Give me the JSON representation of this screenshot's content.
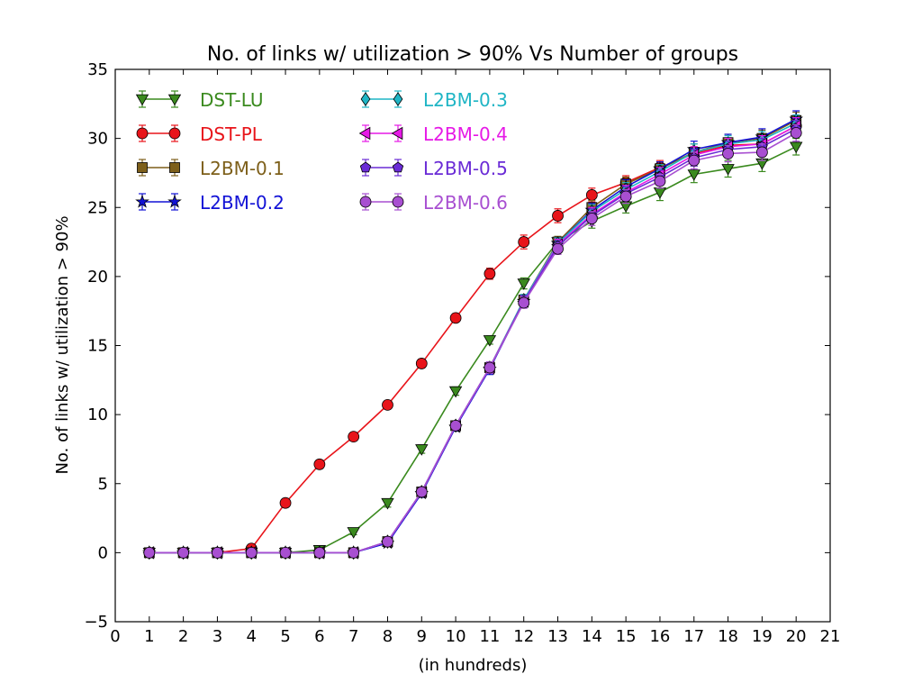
{
  "chart_data": {
    "type": "line",
    "title": "No. of links w/ utilization > 90% Vs Number of groups",
    "xlabel": "(in hundreds)",
    "ylabel": "No. of links w/ utilization > 90%",
    "xlim": [
      0,
      21
    ],
    "ylim": [
      -5,
      35
    ],
    "xticks": [
      0,
      1,
      2,
      3,
      4,
      5,
      6,
      7,
      8,
      9,
      10,
      11,
      12,
      13,
      14,
      15,
      16,
      17,
      18,
      19,
      20,
      21
    ],
    "yticks": [
      -5,
      0,
      5,
      10,
      15,
      20,
      25,
      30,
      35
    ],
    "ytick_labels": [
      "−5",
      "0",
      "5",
      "10",
      "15",
      "20",
      "25",
      "30",
      "35"
    ],
    "grid": false,
    "legend_position": "top-left",
    "x": [
      1,
      2,
      3,
      4,
      5,
      6,
      7,
      8,
      9,
      10,
      11,
      12,
      13,
      14,
      15,
      16,
      17,
      18,
      19,
      20
    ],
    "series": [
      {
        "name": "DST-LU",
        "color": "#3a8a1e",
        "marker": "triangle-down",
        "values": [
          0,
          0,
          0,
          0,
          0,
          0.2,
          1.5,
          3.6,
          7.5,
          11.7,
          15.4,
          19.5,
          22.5,
          24.0,
          25.1,
          26.1,
          27.4,
          27.8,
          28.2,
          29.4
        ],
        "errors": [
          0,
          0,
          0,
          0,
          0,
          0.2,
          0.2,
          0.3,
          0.3,
          0.3,
          0.3,
          0.4,
          0.4,
          0.5,
          0.5,
          0.6,
          0.6,
          0.6,
          0.6,
          0.6
        ]
      },
      {
        "name": "DST-PL",
        "color": "#e8141a",
        "marker": "circle",
        "values": [
          0,
          0,
          0,
          0.3,
          3.6,
          6.4,
          8.4,
          10.7,
          13.7,
          17.0,
          20.2,
          22.5,
          24.4,
          25.9,
          26.8,
          27.9,
          28.9,
          29.5,
          29.6,
          30.9
        ],
        "errors": [
          0,
          0,
          0,
          0.1,
          0.2,
          0.2,
          0.2,
          0.2,
          0.3,
          0.3,
          0.4,
          0.5,
          0.5,
          0.5,
          0.5,
          0.5,
          0.5,
          0.5,
          0.5,
          0.6
        ]
      },
      {
        "name": "L2BM-0.1",
        "color": "#7d5f1a",
        "marker": "square",
        "values": [
          0,
          0,
          0,
          0,
          0,
          0,
          0,
          0.8,
          4.4,
          9.2,
          13.4,
          18.3,
          22.5,
          25.0,
          26.7,
          27.8,
          29.0,
          29.7,
          30.0,
          31.3
        ],
        "errors": [
          0,
          0,
          0,
          0,
          0,
          0,
          0,
          0.2,
          0.3,
          0.3,
          0.4,
          0.4,
          0.4,
          0.5,
          0.5,
          0.5,
          0.6,
          0.6,
          0.6,
          0.6
        ]
      },
      {
        "name": "L2BM-0.2",
        "color": "#1212d6",
        "marker": "star",
        "values": [
          0,
          0,
          0,
          0,
          0,
          0,
          0,
          0.7,
          4.3,
          9.1,
          13.3,
          18.2,
          22.4,
          24.8,
          26.5,
          27.8,
          29.2,
          29.7,
          30.1,
          31.4
        ],
        "errors": [
          0,
          0,
          0,
          0,
          0,
          0,
          0,
          0.2,
          0.3,
          0.3,
          0.4,
          0.4,
          0.4,
          0.5,
          0.5,
          0.5,
          0.6,
          0.6,
          0.6,
          0.6
        ]
      },
      {
        "name": "L2BM-0.3",
        "color": "#1fb5c5",
        "marker": "diamond",
        "values": [
          0,
          0,
          0,
          0,
          0,
          0,
          0,
          0.8,
          4.4,
          9.2,
          13.4,
          18.3,
          22.4,
          24.7,
          26.3,
          27.6,
          29.0,
          29.6,
          29.9,
          31.1
        ],
        "errors": [
          0,
          0,
          0,
          0,
          0,
          0,
          0,
          0.2,
          0.3,
          0.3,
          0.4,
          0.4,
          0.4,
          0.5,
          0.5,
          0.5,
          0.6,
          0.6,
          0.6,
          0.6
        ]
      },
      {
        "name": "L2BM-0.4",
        "color": "#e619e6",
        "marker": "triangle-left",
        "values": [
          0,
          0,
          0,
          0,
          0,
          0,
          0,
          0.8,
          4.4,
          9.2,
          13.4,
          18.2,
          22.3,
          24.5,
          26.1,
          27.4,
          28.8,
          29.4,
          29.6,
          30.9
        ],
        "errors": [
          0,
          0,
          0,
          0,
          0,
          0,
          0,
          0.2,
          0.3,
          0.3,
          0.4,
          0.4,
          0.4,
          0.5,
          0.5,
          0.5,
          0.6,
          0.6,
          0.6,
          0.6
        ]
      },
      {
        "name": "L2BM-0.5",
        "color": "#6a2bd6",
        "marker": "pentagon",
        "values": [
          0,
          0,
          0,
          0,
          0,
          0,
          0,
          0.8,
          4.4,
          9.2,
          13.4,
          18.2,
          22.2,
          24.4,
          26.0,
          27.2,
          28.6,
          29.2,
          29.4,
          30.7
        ],
        "errors": [
          0,
          0,
          0,
          0,
          0,
          0,
          0,
          0.2,
          0.3,
          0.3,
          0.4,
          0.4,
          0.4,
          0.5,
          0.5,
          0.5,
          0.6,
          0.6,
          0.6,
          0.6
        ]
      },
      {
        "name": "L2BM-0.6",
        "color": "#a84fd1",
        "marker": "circle",
        "values": [
          0,
          0,
          0,
          0,
          0,
          0,
          0,
          0.8,
          4.4,
          9.2,
          13.4,
          18.1,
          22.0,
          24.2,
          25.8,
          26.9,
          28.4,
          28.9,
          29.0,
          30.4
        ],
        "errors": [
          0,
          0,
          0,
          0,
          0,
          0,
          0,
          0.2,
          0.3,
          0.3,
          0.4,
          0.4,
          0.4,
          0.5,
          0.5,
          0.5,
          0.6,
          0.6,
          0.6,
          0.6
        ]
      }
    ]
  }
}
